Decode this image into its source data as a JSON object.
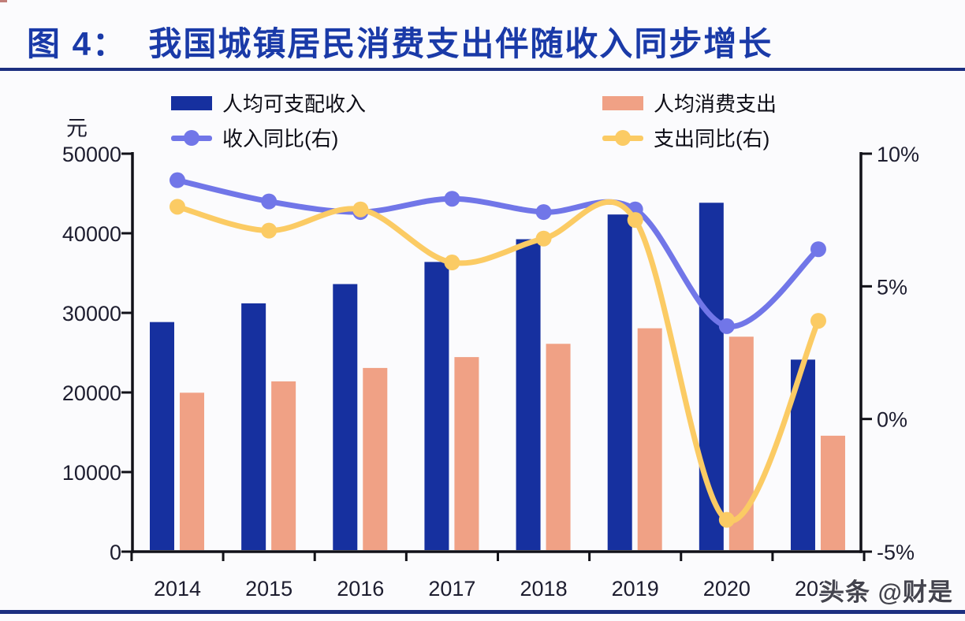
{
  "page": {
    "title": "图 4：  我国城镇居民消费支出伴随收入同步增长",
    "watermark": "头条 @财是"
  },
  "legend": {
    "income_bar_label": "人均可支配收入",
    "expense_bar_label": "人均消费支出",
    "income_line_label": "收入同比(右)",
    "expense_line_label": "支出同比(右)"
  },
  "colors": {
    "title_blue": "#1a3aa8",
    "rule_navy": "#1c2f80",
    "bar_income": "#16309f",
    "bar_expense": "#f0a185",
    "line_income": "#7176e8",
    "line_expense": "#fbcb64",
    "axis": "#111118",
    "tick_text": "#1d1d2f",
    "watermark_gray": "#44444e"
  },
  "chart_data": {
    "type": "bar+line combo",
    "categories": [
      "2014",
      "2015",
      "2016",
      "2017",
      "2018",
      "2019",
      "2020",
      "2021"
    ],
    "series": [
      {
        "name": "人均可支配收入",
        "type": "bar",
        "axis": "left",
        "color": "#16309f",
        "values": [
          28844,
          31195,
          33616,
          36396,
          39251,
          42359,
          43834,
          24125
        ]
      },
      {
        "name": "人均消费支出",
        "type": "bar",
        "axis": "left",
        "color": "#f0a185",
        "values": [
          19968,
          21392,
          23079,
          24445,
          26112,
          28063,
          27007,
          14566
        ]
      },
      {
        "name": "收入同比(右)",
        "type": "line",
        "axis": "right",
        "color": "#7176e8",
        "values": [
          9.0,
          8.2,
          7.8,
          8.3,
          7.8,
          7.9,
          3.5,
          6.4
        ]
      },
      {
        "name": "支出同比(右)",
        "type": "line",
        "axis": "right",
        "color": "#fbcb64",
        "values": [
          8.0,
          7.1,
          7.9,
          5.9,
          6.8,
          7.5,
          -3.8,
          3.7
        ]
      }
    ],
    "left_axis": {
      "label": "元",
      "min": 0,
      "max": 50000,
      "ticks": [
        "50000",
        "40000",
        "30000",
        "20000",
        "10000",
        "0"
      ]
    },
    "right_axis": {
      "min": -5,
      "max": 10,
      "ticks": [
        {
          "label": "10%",
          "value": 10
        },
        {
          "label": "5%",
          "value": 5
        },
        {
          "label": "0%",
          "value": 0
        },
        {
          "label": "-5%",
          "value": -5
        }
      ]
    },
    "grid": false,
    "legend_position": "top"
  }
}
